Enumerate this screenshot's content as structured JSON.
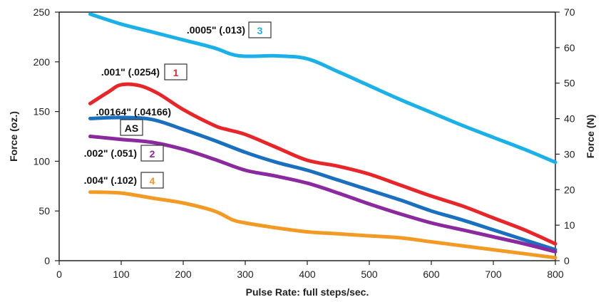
{
  "chart_data": {
    "type": "line",
    "xlabel": "Pulse Rate: full steps/sec.",
    "ylabel": "Force (oz.)",
    "ylabel_right": "Force (N)",
    "xlim": [
      0,
      800
    ],
    "ylim": [
      0,
      250
    ],
    "ylim_right": [
      0,
      70
    ],
    "x_ticks": [
      "0",
      "100",
      "200",
      "300",
      "400",
      "500",
      "600",
      "700",
      "800"
    ],
    "y_ticks": [
      "0",
      "50",
      "100",
      "150",
      "200",
      "250"
    ],
    "y_ticks_right": [
      "0",
      "10",
      "20",
      "30",
      "40",
      "50",
      "60",
      "70"
    ],
    "grid": false,
    "series": [
      {
        "name": ".0005\" (.013)",
        "number": "3",
        "color": "#1ab0e8",
        "points": [
          [
            50,
            248
          ],
          [
            100,
            238
          ],
          [
            150,
            230
          ],
          [
            200,
            222
          ],
          [
            250,
            214
          ],
          [
            290,
            206
          ],
          [
            350,
            206
          ],
          [
            400,
            203
          ],
          [
            450,
            190
          ],
          [
            500,
            176
          ],
          [
            550,
            162
          ],
          [
            600,
            149
          ],
          [
            650,
            136
          ],
          [
            700,
            124
          ],
          [
            750,
            112
          ],
          [
            800,
            99
          ]
        ]
      },
      {
        "name": ".001\" (.0254)",
        "number": "1",
        "color": "#e8262a",
        "points": [
          [
            50,
            158
          ],
          [
            80,
            170
          ],
          [
            100,
            177
          ],
          [
            130,
            176
          ],
          [
            160,
            168
          ],
          [
            200,
            152
          ],
          [
            250,
            136
          ],
          [
            270,
            132
          ],
          [
            300,
            127
          ],
          [
            350,
            114
          ],
          [
            400,
            101
          ],
          [
            450,
            95
          ],
          [
            500,
            87
          ],
          [
            550,
            76
          ],
          [
            600,
            65
          ],
          [
            650,
            55
          ],
          [
            700,
            43
          ],
          [
            750,
            31
          ],
          [
            800,
            17
          ]
        ]
      },
      {
        "name": ".00164\" (.04166)",
        "number": "AS",
        "color": "#1a6fbf",
        "points": [
          [
            50,
            143
          ],
          [
            100,
            144
          ],
          [
            150,
            142
          ],
          [
            200,
            132
          ],
          [
            250,
            121
          ],
          [
            300,
            109
          ],
          [
            350,
            99
          ],
          [
            400,
            91
          ],
          [
            450,
            81
          ],
          [
            500,
            71
          ],
          [
            550,
            61
          ],
          [
            600,
            50
          ],
          [
            650,
            41
          ],
          [
            700,
            31
          ],
          [
            750,
            21
          ],
          [
            800,
            11
          ]
        ]
      },
      {
        "name": ".002\" (.051)",
        "number": "2",
        "color": "#8a2a9e",
        "points": [
          [
            50,
            125
          ],
          [
            100,
            122
          ],
          [
            150,
            119
          ],
          [
            200,
            112
          ],
          [
            250,
            102
          ],
          [
            300,
            91
          ],
          [
            350,
            85
          ],
          [
            400,
            78
          ],
          [
            450,
            68
          ],
          [
            500,
            57
          ],
          [
            550,
            47
          ],
          [
            600,
            38
          ],
          [
            650,
            31
          ],
          [
            700,
            24
          ],
          [
            750,
            17
          ],
          [
            800,
            9
          ]
        ]
      },
      {
        "name": ".004\" (.102)",
        "number": "4",
        "color": "#f29a24",
        "points": [
          [
            50,
            69
          ],
          [
            100,
            68
          ],
          [
            150,
            63
          ],
          [
            200,
            58
          ],
          [
            250,
            50
          ],
          [
            280,
            41
          ],
          [
            300,
            38
          ],
          [
            350,
            33
          ],
          [
            400,
            29
          ],
          [
            450,
            27
          ],
          [
            500,
            25
          ],
          [
            550,
            23
          ],
          [
            600,
            19
          ],
          [
            650,
            15
          ],
          [
            700,
            11
          ],
          [
            750,
            7
          ],
          [
            800,
            3
          ]
        ]
      }
    ]
  }
}
